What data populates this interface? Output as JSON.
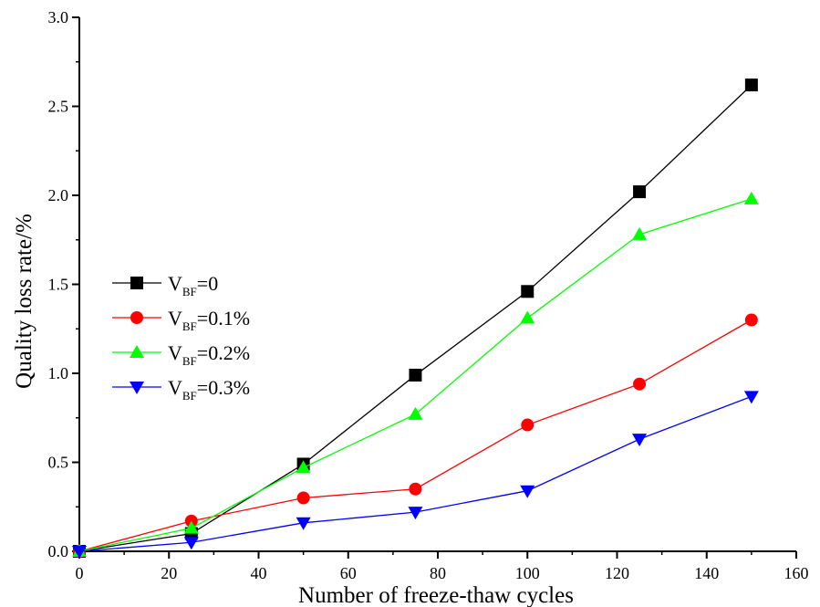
{
  "chart_data": {
    "type": "line",
    "title": "",
    "xlabel": "Number of freeze-thaw cycles",
    "ylabel": "Quality loss rate/%",
    "xlim": [
      0,
      160
    ],
    "ylim": [
      0,
      3.0
    ],
    "x_ticks": [
      "0",
      "20",
      "40",
      "60",
      "80",
      "100",
      "120",
      "140",
      "160"
    ],
    "y_ticks": [
      "0.0",
      "0.5",
      "1.0",
      "1.5",
      "2.0",
      "2.5",
      "3.0"
    ],
    "grid": false,
    "legend_position": "left-middle",
    "x": [
      0,
      25,
      50,
      75,
      100,
      125,
      150
    ],
    "series": [
      {
        "name_main": "V",
        "name_sub": "BF",
        "name_suffix": "=0",
        "color": "#000000",
        "marker": "square",
        "values": [
          0.0,
          0.1,
          0.49,
          0.99,
          1.46,
          2.02,
          2.62
        ]
      },
      {
        "name_main": "V",
        "name_sub": "BF",
        "name_suffix": "=0.1%",
        "color": "#ff0000",
        "marker": "circle",
        "values": [
          0.0,
          0.17,
          0.3,
          0.35,
          0.71,
          0.94,
          1.3
        ]
      },
      {
        "name_main": "V",
        "name_sub": "BF",
        "name_suffix": "=0.2%",
        "color": "#00ff00",
        "marker": "triangle-up",
        "values": [
          0.0,
          0.13,
          0.47,
          0.77,
          1.31,
          1.78,
          1.98
        ]
      },
      {
        "name_main": "V",
        "name_sub": "BF",
        "name_suffix": "=0.3%",
        "color": "#0000ff",
        "marker": "triangle-down",
        "values": [
          0.0,
          0.05,
          0.16,
          0.22,
          0.34,
          0.63,
          0.87
        ]
      }
    ]
  }
}
